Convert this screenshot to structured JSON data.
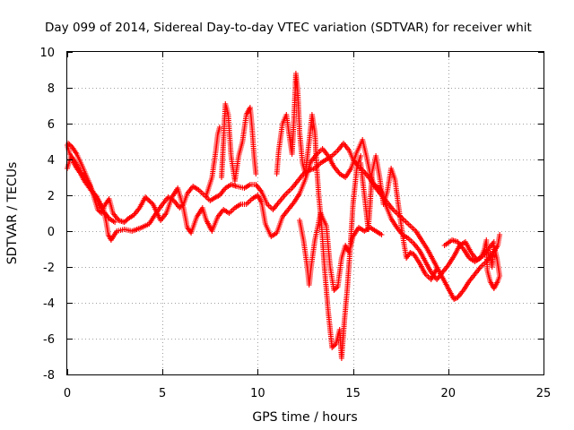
{
  "chart_data": {
    "type": "scatter",
    "title": "Day 099 of 2014, Sidereal Day-to-day VTEC variation (SDTVAR) for receiver whit",
    "xlabel": "GPS time / hours",
    "ylabel": "SDTVAR / TECUs",
    "xlim": [
      0,
      25
    ],
    "ylim": [
      -8,
      10
    ],
    "xticks": [
      0,
      5,
      10,
      15,
      20,
      25
    ],
    "yticks": [
      -8,
      -6,
      -4,
      -2,
      0,
      2,
      4,
      6,
      8,
      10
    ],
    "xtick_labels": [
      "0",
      "5",
      "10",
      "15",
      "20",
      "25"
    ],
    "ytick_labels": [
      "-8",
      "-6",
      "-4",
      "-2",
      "0",
      "2",
      "4",
      "6",
      "8",
      "10"
    ],
    "grid": true,
    "marker": "+",
    "series": [
      {
        "name": "SDTVAR",
        "color": "#ff0000",
        "tracks": [
          [
            [
              0.0,
              4.8
            ],
            [
              0.1,
              4.4
            ],
            [
              0.3,
              3.9
            ],
            [
              0.5,
              3.5
            ],
            [
              0.7,
              3.2
            ],
            [
              0.9,
              2.8
            ],
            [
              1.1,
              2.5
            ],
            [
              1.3,
              2.2
            ],
            [
              1.5,
              2.0
            ],
            [
              1.7,
              1.6
            ],
            [
              1.9,
              1.2
            ],
            [
              2.05,
              0.5
            ],
            [
              2.15,
              -0.2
            ],
            [
              2.3,
              -0.5
            ],
            [
              2.6,
              0.0
            ],
            [
              3.0,
              0.1
            ],
            [
              3.4,
              0.0
            ],
            [
              3.9,
              0.2
            ],
            [
              4.3,
              0.4
            ],
            [
              4.6,
              0.9
            ],
            [
              5.0,
              1.5
            ],
            [
              5.3,
              1.9
            ],
            [
              5.6,
              1.7
            ],
            [
              5.9,
              1.3
            ],
            [
              6.1,
              1.5
            ],
            [
              6.3,
              2.1
            ],
            [
              6.6,
              2.5
            ],
            [
              6.9,
              2.3
            ],
            [
              7.2,
              2.0
            ],
            [
              7.5,
              1.7
            ],
            [
              7.8,
              1.9
            ],
            [
              8.0,
              2.0
            ],
            [
              8.3,
              2.4
            ],
            [
              8.6,
              2.6
            ],
            [
              8.9,
              2.5
            ],
            [
              9.3,
              2.4
            ],
            [
              9.6,
              2.6
            ],
            [
              9.9,
              2.6
            ],
            [
              10.2,
              2.2
            ],
            [
              10.5,
              1.5
            ],
            [
              10.8,
              1.2
            ],
            [
              11.1,
              1.6
            ],
            [
              11.5,
              2.1
            ],
            [
              11.8,
              2.4
            ],
            [
              12.1,
              2.8
            ],
            [
              12.4,
              3.2
            ],
            [
              12.7,
              3.4
            ],
            [
              13.0,
              3.5
            ],
            [
              13.3,
              3.8
            ],
            [
              13.6,
              4.0
            ],
            [
              13.9,
              4.2
            ],
            [
              14.2,
              4.5
            ],
            [
              14.5,
              4.9
            ],
            [
              14.8,
              4.5
            ],
            [
              15.0,
              4.0
            ],
            [
              15.3,
              3.6
            ],
            [
              15.6,
              3.3
            ],
            [
              15.9,
              2.9
            ],
            [
              16.2,
              2.4
            ],
            [
              16.5,
              2.0
            ],
            [
              16.8,
              1.6
            ],
            [
              17.1,
              1.2
            ],
            [
              17.4,
              0.9
            ],
            [
              17.7,
              0.6
            ],
            [
              18.0,
              0.3
            ],
            [
              18.3,
              0.0
            ],
            [
              18.6,
              -0.5
            ],
            [
              18.9,
              -1.0
            ],
            [
              19.2,
              -1.6
            ],
            [
              19.5,
              -2.2
            ],
            [
              19.8,
              -2.8
            ],
            [
              20.1,
              -3.4
            ],
            [
              20.3,
              -3.8
            ],
            [
              20.5,
              -3.7
            ],
            [
              20.8,
              -3.3
            ],
            [
              21.1,
              -2.8
            ],
            [
              21.4,
              -2.4
            ],
            [
              21.7,
              -2.0
            ],
            [
              22.0,
              -1.7
            ],
            [
              22.3,
              -1.3
            ],
            [
              22.6,
              -0.8
            ],
            [
              22.7,
              -0.2
            ]
          ],
          [
            [
              0.05,
              4.9
            ],
            [
              0.25,
              4.7
            ],
            [
              0.5,
              4.3
            ],
            [
              0.8,
              3.6
            ],
            [
              1.0,
              3.1
            ],
            [
              1.2,
              2.6
            ],
            [
              1.4,
              1.9
            ],
            [
              1.6,
              1.2
            ],
            [
              1.8,
              1.0
            ],
            [
              2.0,
              1.5
            ],
            [
              2.2,
              1.8
            ],
            [
              2.4,
              1.0
            ],
            [
              2.7,
              0.6
            ],
            [
              3.0,
              0.5
            ],
            [
              3.2,
              0.7
            ],
            [
              3.5,
              0.9
            ],
            [
              3.8,
              1.3
            ],
            [
              4.1,
              1.9
            ],
            [
              4.5,
              1.5
            ],
            [
              4.9,
              0.6
            ],
            [
              5.2,
              1.0
            ],
            [
              5.5,
              1.9
            ],
            [
              5.8,
              2.4
            ],
            [
              6.1,
              1.3
            ],
            [
              6.3,
              0.2
            ],
            [
              6.5,
              -0.1
            ],
            [
              6.8,
              0.8
            ],
            [
              7.1,
              1.3
            ],
            [
              7.3,
              0.6
            ],
            [
              7.6,
              0.0
            ],
            [
              7.9,
              0.8
            ],
            [
              8.2,
              1.2
            ],
            [
              8.5,
              1.0
            ],
            [
              8.8,
              1.3
            ],
            [
              9.1,
              1.5
            ],
            [
              9.4,
              1.5
            ],
            [
              9.7,
              1.8
            ],
            [
              10.0,
              2.0
            ],
            [
              10.2,
              1.6
            ],
            [
              10.4,
              0.4
            ],
            [
              10.7,
              -0.3
            ],
            [
              11.0,
              -0.1
            ],
            [
              11.3,
              0.8
            ],
            [
              11.6,
              1.2
            ],
            [
              11.9,
              1.6
            ],
            [
              12.2,
              2.1
            ],
            [
              12.5,
              2.9
            ],
            [
              12.8,
              3.9
            ],
            [
              13.1,
              4.3
            ],
            [
              13.4,
              4.6
            ],
            [
              13.7,
              4.2
            ],
            [
              14.0,
              3.6
            ],
            [
              14.3,
              3.2
            ],
            [
              14.6,
              3.0
            ],
            [
              14.9,
              3.5
            ],
            [
              15.2,
              4.4
            ],
            [
              15.5,
              5.1
            ],
            [
              15.7,
              4.2
            ],
            [
              15.9,
              3.2
            ],
            [
              16.1,
              2.6
            ],
            [
              16.4,
              2.4
            ],
            [
              16.7,
              1.5
            ],
            [
              17.0,
              0.7
            ],
            [
              17.3,
              0.2
            ],
            [
              17.6,
              -0.2
            ],
            [
              17.9,
              -0.4
            ],
            [
              18.2,
              -0.7
            ],
            [
              18.5,
              -1.1
            ],
            [
              18.8,
              -1.7
            ],
            [
              19.1,
              -2.3
            ],
            [
              19.4,
              -2.7
            ],
            [
              19.7,
              -2.3
            ],
            [
              20.0,
              -1.9
            ],
            [
              20.3,
              -1.4
            ],
            [
              20.6,
              -0.8
            ],
            [
              20.9,
              -0.6
            ],
            [
              21.2,
              -1.2
            ],
            [
              21.5,
              -1.6
            ],
            [
              21.8,
              -1.4
            ],
            [
              22.1,
              -1.0
            ],
            [
              22.4,
              -0.6
            ]
          ],
          [
            [
              0.0,
              3.5
            ],
            [
              0.2,
              4.2
            ],
            [
              0.4,
              3.9
            ],
            [
              0.7,
              3.3
            ],
            [
              1.0,
              2.9
            ],
            [
              1.3,
              2.3
            ],
            [
              1.6,
              1.7
            ],
            [
              1.9,
              1.1
            ],
            [
              2.2,
              0.7
            ],
            [
              2.5,
              0.5
            ]
          ],
          [
            [
              8.1,
              3.0
            ],
            [
              8.2,
              5.0
            ],
            [
              8.3,
              7.1
            ],
            [
              8.45,
              6.5
            ],
            [
              8.6,
              4.2
            ],
            [
              8.8,
              2.8
            ],
            [
              9.0,
              4.2
            ],
            [
              9.2,
              5.0
            ],
            [
              9.4,
              6.5
            ],
            [
              9.6,
              6.9
            ],
            [
              9.7,
              5.8
            ],
            [
              9.8,
              4.3
            ],
            [
              9.9,
              3.2
            ]
          ],
          [
            [
              7.3,
              2.0
            ],
            [
              7.6,
              3.0
            ],
            [
              7.8,
              4.5
            ],
            [
              7.9,
              5.4
            ],
            [
              8.0,
              5.8
            ]
          ],
          [
            [
              11.0,
              3.2
            ],
            [
              11.1,
              4.5
            ],
            [
              11.3,
              6.0
            ],
            [
              11.5,
              6.5
            ],
            [
              11.7,
              5.0
            ],
            [
              11.8,
              4.3
            ],
            [
              11.9,
              6.2
            ],
            [
              12.0,
              8.8
            ],
            [
              12.1,
              7.8
            ],
            [
              12.2,
              5.5
            ],
            [
              12.35,
              3.8
            ],
            [
              12.5,
              3.2
            ],
            [
              12.7,
              5.0
            ],
            [
              12.85,
              6.5
            ],
            [
              13.0,
              5.5
            ],
            [
              13.1,
              3.5
            ],
            [
              13.2,
              2.0
            ],
            [
              13.35,
              0.3
            ],
            [
              13.5,
              -2.0
            ],
            [
              13.7,
              -4.5
            ],
            [
              13.9,
              -6.5
            ],
            [
              14.1,
              -6.3
            ],
            [
              14.3,
              -5.5
            ],
            [
              14.4,
              -7.1
            ],
            [
              14.55,
              -5.0
            ],
            [
              14.7,
              -3.2
            ],
            [
              14.85,
              -1.0
            ],
            [
              15.0,
              1.5
            ],
            [
              15.2,
              3.5
            ],
            [
              15.4,
              4.2
            ]
          ],
          [
            [
              12.2,
              0.6
            ],
            [
              12.4,
              -0.5
            ],
            [
              12.6,
              -2.0
            ],
            [
              12.7,
              -3.0
            ],
            [
              12.8,
              -2.0
            ],
            [
              13.0,
              -0.5
            ],
            [
              13.3,
              1.0
            ],
            [
              13.6,
              0.3
            ],
            [
              13.8,
              -2.0
            ],
            [
              14.0,
              -3.3
            ],
            [
              14.2,
              -3.1
            ],
            [
              14.4,
              -1.5
            ],
            [
              14.6,
              -0.8
            ],
            [
              14.8,
              -1.2
            ],
            [
              15.0,
              -0.3
            ],
            [
              15.3,
              0.2
            ],
            [
              15.6,
              0.0
            ],
            [
              15.9,
              0.2
            ],
            [
              16.2,
              0.0
            ],
            [
              16.5,
              -0.2
            ]
          ],
          [
            [
              15.4,
              3.8
            ],
            [
              15.6,
              2.0
            ],
            [
              15.8,
              0.1
            ],
            [
              15.9,
              1.5
            ],
            [
              16.0,
              3.3
            ],
            [
              16.2,
              4.2
            ],
            [
              16.4,
              3.0
            ],
            [
              16.6,
              1.5
            ],
            [
              16.8,
              2.2
            ],
            [
              17.0,
              3.5
            ],
            [
              17.2,
              2.9
            ],
            [
              17.4,
              1.3
            ],
            [
              17.6,
              -0.2
            ],
            [
              17.8,
              -1.5
            ],
            [
              18.0,
              -1.2
            ],
            [
              18.2,
              -1.3
            ],
            [
              18.5,
              -1.8
            ],
            [
              18.8,
              -2.4
            ],
            [
              19.1,
              -2.7
            ],
            [
              19.4,
              -2.1
            ]
          ],
          [
            [
              19.8,
              -0.8
            ],
            [
              20.2,
              -0.5
            ],
            [
              20.5,
              -0.6
            ],
            [
              20.8,
              -1.0
            ],
            [
              21.1,
              -1.5
            ],
            [
              21.4,
              -1.7
            ],
            [
              21.7,
              -1.5
            ],
            [
              21.9,
              -1.0
            ],
            [
              22.0,
              -0.5
            ],
            [
              22.05,
              -2.2
            ],
            [
              22.2,
              -2.8
            ],
            [
              22.4,
              -3.2
            ],
            [
              22.6,
              -2.8
            ],
            [
              22.7,
              -2.5
            ],
            [
              22.55,
              -1.5
            ],
            [
              22.4,
              -0.8
            ],
            [
              22.3,
              -2.0
            ],
            [
              22.2,
              -1.2
            ]
          ]
        ]
      }
    ]
  }
}
